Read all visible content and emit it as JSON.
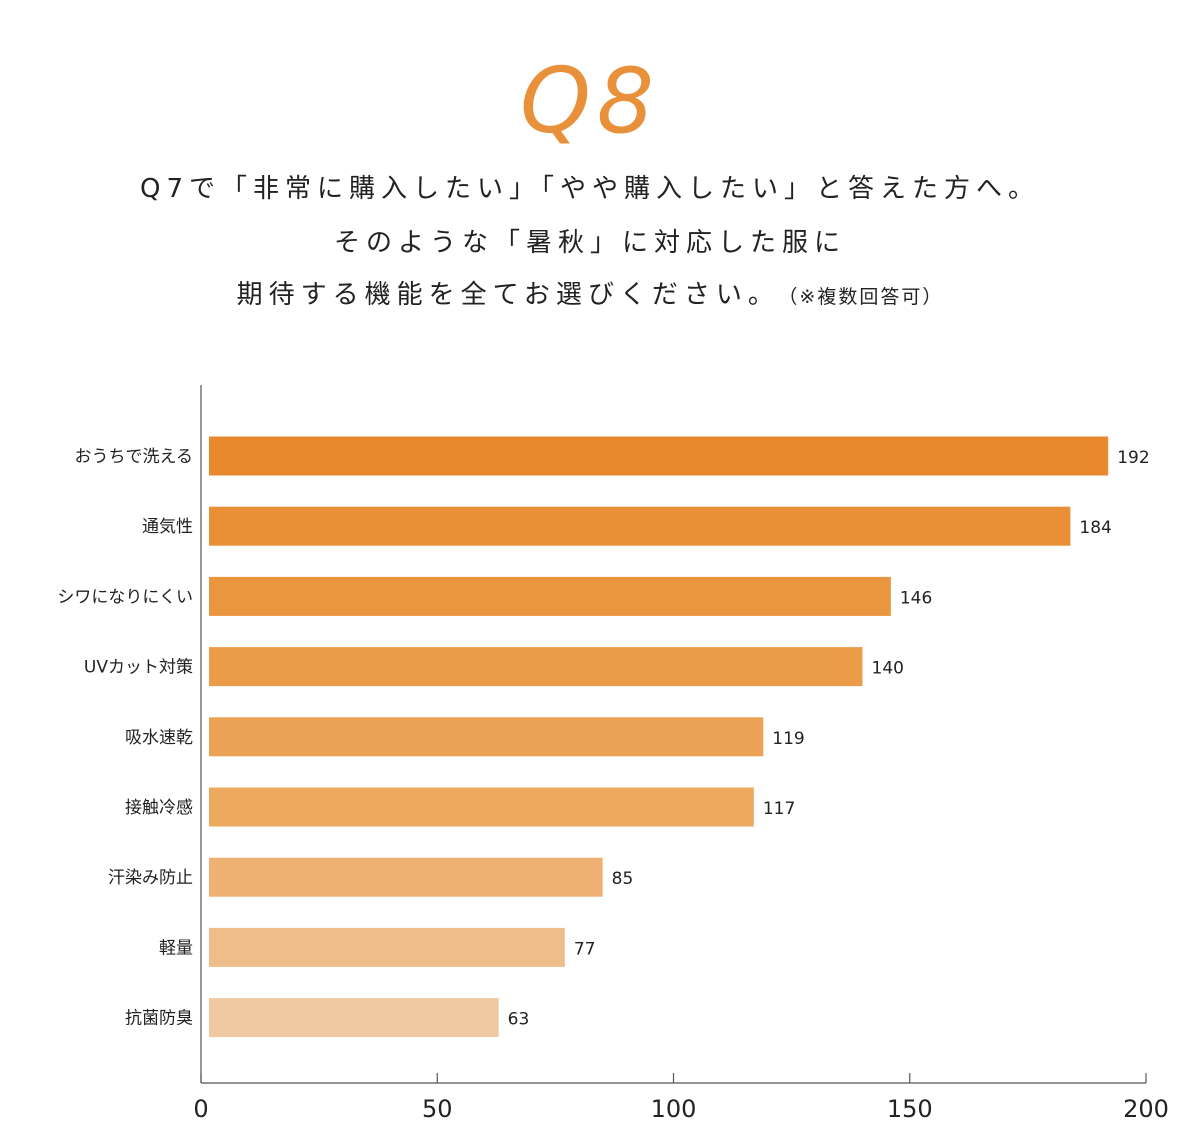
{
  "header": {
    "question_number": "Q8",
    "line1": "Q7で「非常に購入したい」「やや購入したい」と答えた方へ。",
    "line2": "そのような「暑秋」に対応した服に",
    "line3": "期待する機能を全てお選びください。",
    "line3_note": "（※複数回答可）"
  },
  "chart_data": {
    "type": "bar",
    "orientation": "horizontal",
    "categories": [
      "おうちで洗える",
      "通気性",
      "シワになりにくい",
      "UVカット対策",
      "吸水速乾",
      "接触冷感",
      "汗染み防止",
      "軽量",
      "抗菌防臭"
    ],
    "values": [
      192,
      184,
      146,
      140,
      119,
      117,
      85,
      77,
      63
    ],
    "value_labels": [
      "192",
      "184",
      "146",
      "140",
      "119",
      "117",
      "85",
      "77",
      "63"
    ],
    "bar_colors": [
      "#e8892d",
      "#e98f36",
      "#ea963f",
      "#eb9c48",
      "#eca254",
      "#eda95e",
      "#eeb171",
      "#efbd89",
      "#f0c9a2"
    ],
    "xlim": [
      0,
      200
    ],
    "x_ticks": [
      0,
      50,
      100,
      150,
      200
    ],
    "x_tick_labels": [
      "0",
      "50",
      "100",
      "150",
      "200"
    ],
    "grid": false,
    "legend": "none",
    "title": "",
    "xlabel": "",
    "ylabel": ""
  }
}
